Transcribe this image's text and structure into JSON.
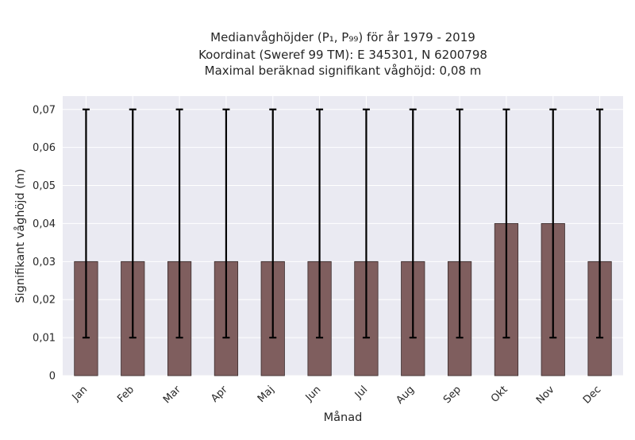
{
  "chart_data": {
    "type": "bar",
    "title_lines": [
      "Medianvåghöjder (P₁, P₉₉) för år 1979 - 2019",
      "Koordinat (Sweref 99 TM): E 345301, N 6200798",
      "Maximal beräknad signifikant våghöjd: 0,08 m"
    ],
    "xlabel": "Månad",
    "ylabel": "Signifikant våghöjd (m)",
    "categories": [
      "Jan",
      "Feb",
      "Mar",
      "Apr",
      "Maj",
      "Jun",
      "Jul",
      "Aug",
      "Sep",
      "Okt",
      "Nov",
      "Dec"
    ],
    "values": [
      0.03,
      0.03,
      0.03,
      0.03,
      0.03,
      0.03,
      0.03,
      0.03,
      0.03,
      0.04,
      0.04,
      0.03
    ],
    "error_low": [
      0.01,
      0.01,
      0.01,
      0.01,
      0.01,
      0.01,
      0.01,
      0.01,
      0.01,
      0.01,
      0.01,
      0.01
    ],
    "error_high": [
      0.07,
      0.07,
      0.07,
      0.07,
      0.07,
      0.07,
      0.07,
      0.07,
      0.07,
      0.07,
      0.07,
      0.07
    ],
    "ylim": [
      0,
      0.0735
    ],
    "yticks": [
      0,
      0.01,
      0.02,
      0.03,
      0.04,
      0.05,
      0.06,
      0.07
    ],
    "ytick_labels": [
      "0",
      "0,01",
      "0,02",
      "0,03",
      "0,04",
      "0,05",
      "0,06",
      "0,07"
    ],
    "grid": true,
    "colors": {
      "bar": "#7f5e5e",
      "bar_edge": "#3a2c2c",
      "error": "#000000",
      "plot_bg": "#eaeaf2",
      "grid": "#ffffff",
      "text": "#262626"
    }
  }
}
